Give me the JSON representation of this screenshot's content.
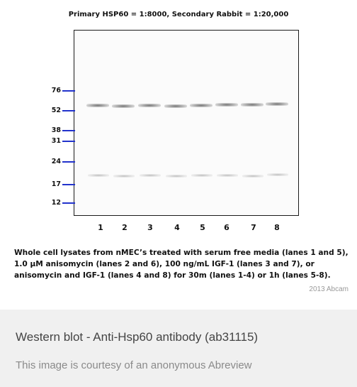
{
  "figure": {
    "title": "Primary HSP60 = 1:8000, Secondary Rabbit = 1:20,000",
    "markers": [
      "76",
      "52",
      "38",
      "31",
      "24",
      "17",
      "12"
    ],
    "lanes": [
      "1",
      "2",
      "3",
      "4",
      "5",
      "6",
      "7",
      "8"
    ],
    "caption": "Whole cell lysates from nMEC’s treated with serum free media (lanes 1 and 5), 1.0 µM anisomycin (lanes 2 and 6), 100 ng/mL IGF-1 (lanes 3 and 7), or anisomycin and IGF-1 (lanes 4 and 8) for 30m (lanes 1-4) or 1h (lanes 5-8).",
    "copyright": "2013 Abcam",
    "marker_color": "#2233cc"
  },
  "info": {
    "title": "Western blot - Anti-Hsp60 antibody (ab31115)",
    "credit": "This image is courtesy of an anonymous Abreview"
  }
}
